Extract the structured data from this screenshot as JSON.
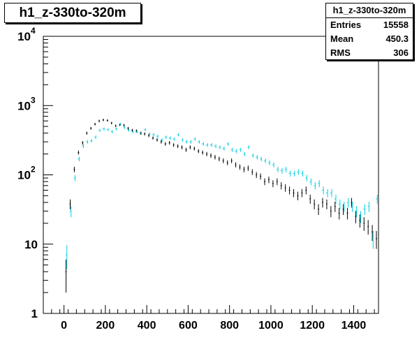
{
  "histogram_title": "h1_z-330to-320m",
  "stats": {
    "name": "h1_z-330to-320m",
    "rows": [
      {
        "label": "Entries",
        "value": "15558"
      },
      {
        "label": "Mean",
        "value": "450.3"
      },
      {
        "label": "RMS",
        "value": "306"
      }
    ]
  },
  "colors": {
    "series_black": "#000000",
    "series_cyan": "#00d0e0"
  },
  "chart_data": {
    "type": "scatter",
    "title": "h1_z-330to-320m",
    "xlabel": "",
    "ylabel": "",
    "xlim": [
      -100,
      1520
    ],
    "ylim": [
      1,
      10000
    ],
    "yscale": "log",
    "grid": false,
    "x_ticks": [
      0,
      200,
      400,
      600,
      800,
      1000,
      1200,
      1400
    ],
    "y_ticks": [
      {
        "value": 1,
        "label": "1",
        "exp": ""
      },
      {
        "value": 10,
        "label": "10",
        "exp": ""
      },
      {
        "value": 100,
        "label": "10",
        "exp": "2"
      },
      {
        "value": 1000,
        "label": "10",
        "exp": "3"
      },
      {
        "value": 10000,
        "label": "10",
        "exp": "4"
      }
    ],
    "bin_width": 20,
    "series": [
      {
        "color": "#000000",
        "x": [
          10,
          30,
          50,
          70,
          90,
          110,
          130,
          150,
          170,
          190,
          210,
          230,
          250,
          270,
          290,
          310,
          330,
          350,
          370,
          390,
          410,
          430,
          450,
          470,
          490,
          510,
          530,
          550,
          570,
          590,
          610,
          630,
          650,
          670,
          690,
          710,
          730,
          750,
          770,
          790,
          810,
          830,
          850,
          870,
          890,
          910,
          930,
          950,
          970,
          990,
          1010,
          1030,
          1050,
          1070,
          1090,
          1110,
          1130,
          1150,
          1170,
          1190,
          1210,
          1230,
          1250,
          1270,
          1290,
          1310,
          1330,
          1350,
          1370,
          1390,
          1410,
          1430,
          1450,
          1470,
          1490,
          1510
        ],
        "y": [
          4,
          38,
          120,
          210,
          290,
          400,
          470,
          540,
          600,
          620,
          610,
          560,
          510,
          530,
          520,
          470,
          440,
          430,
          400,
          390,
          370,
          340,
          320,
          300,
          280,
          290,
          270,
          260,
          250,
          230,
          250,
          240,
          220,
          210,
          200,
          190,
          180,
          170,
          160,
          150,
          160,
          140,
          130,
          120,
          125,
          110,
          100,
          95,
          80,
          85,
          75,
          80,
          70,
          65,
          60,
          55,
          50,
          55,
          60,
          45,
          38,
          32,
          40,
          38,
          30,
          35,
          28,
          32,
          28,
          40,
          25,
          22,
          20,
          18,
          15,
          12
        ]
      },
      {
        "color": "#00d0e0",
        "x": [
          10,
          30,
          50,
          70,
          90,
          110,
          130,
          150,
          170,
          190,
          210,
          230,
          250,
          270,
          290,
          310,
          330,
          350,
          370,
          390,
          410,
          430,
          450,
          470,
          490,
          510,
          530,
          550,
          570,
          590,
          610,
          630,
          650,
          670,
          690,
          710,
          730,
          750,
          770,
          790,
          810,
          830,
          850,
          870,
          890,
          910,
          930,
          950,
          970,
          990,
          1010,
          1030,
          1050,
          1070,
          1090,
          1110,
          1130,
          1150,
          1170,
          1190,
          1210,
          1230,
          1250,
          1270,
          1290,
          1310,
          1330,
          1350,
          1370,
          1390,
          1410,
          1430,
          1450,
          1470,
          1490,
          1510
        ],
        "y": [
          7,
          30,
          90,
          170,
          260,
          300,
          310,
          350,
          440,
          460,
          450,
          420,
          460,
          540,
          480,
          440,
          420,
          420,
          400,
          450,
          390,
          380,
          360,
          320,
          350,
          340,
          330,
          380,
          320,
          300,
          300,
          330,
          300,
          280,
          270,
          270,
          260,
          250,
          240,
          280,
          230,
          220,
          230,
          200,
          250,
          190,
          180,
          170,
          160,
          150,
          140,
          120,
          115,
          120,
          105,
          105,
          110,
          105,
          90,
          80,
          70,
          75,
          60,
          55,
          55,
          45,
          38,
          35,
          40,
          35,
          30,
          25,
          32,
          35,
          12,
          45
        ]
      }
    ]
  }
}
